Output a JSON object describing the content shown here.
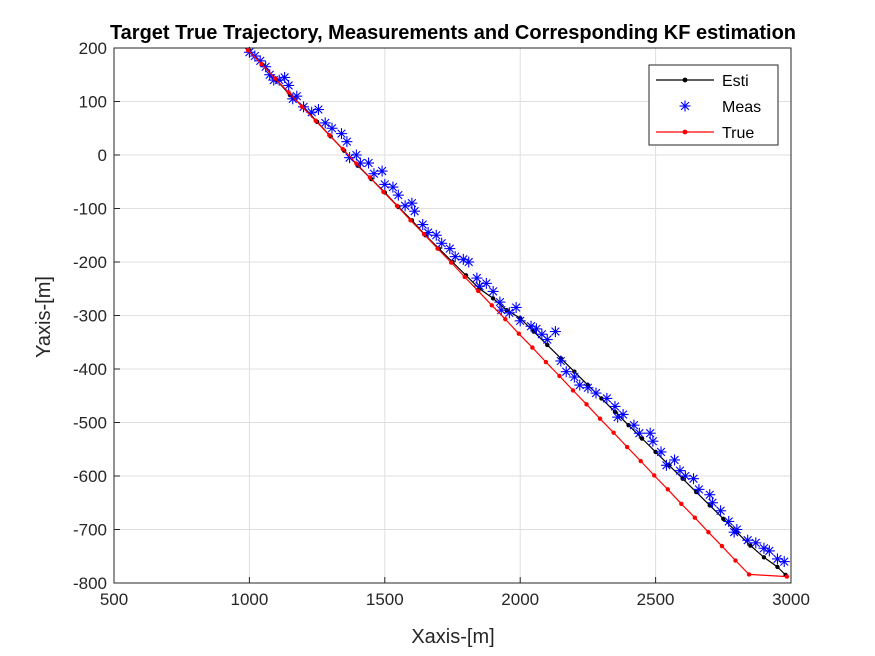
{
  "chart_data": {
    "type": "line",
    "title": "Target True Trajectory, Measurements and Corresponding KF estimation",
    "xlabel": "Xaxis-[m]",
    "ylabel": "Yaxis-[m]",
    "xlim": [
      500,
      3000
    ],
    "ylim": [
      -800,
      200
    ],
    "xticks": [
      500,
      1000,
      1500,
      2000,
      2500,
      3000
    ],
    "yticks": [
      200,
      100,
      0,
      -100,
      -200,
      -300,
      -400,
      -500,
      -600,
      -700,
      -800
    ],
    "grid": true,
    "legend_position": "top-right",
    "series": [
      {
        "name": "Esti",
        "color": "#000000",
        "marker": "dot",
        "points": [
          [
            1000,
            195
          ],
          [
            1050,
            168
          ],
          [
            1100,
            140
          ],
          [
            1150,
            112
          ],
          [
            1200,
            90
          ],
          [
            1250,
            62
          ],
          [
            1300,
            35
          ],
          [
            1350,
            8
          ],
          [
            1400,
            -20
          ],
          [
            1450,
            -45
          ],
          [
            1500,
            -70
          ],
          [
            1550,
            -97
          ],
          [
            1600,
            -122
          ],
          [
            1650,
            -150
          ],
          [
            1700,
            -175
          ],
          [
            1750,
            -200
          ],
          [
            1800,
            -225
          ],
          [
            1850,
            -250
          ],
          [
            1900,
            -268
          ],
          [
            1950,
            -290
          ],
          [
            2000,
            -305
          ],
          [
            2050,
            -330
          ],
          [
            2100,
            -355
          ],
          [
            2150,
            -380
          ],
          [
            2200,
            -405
          ],
          [
            2250,
            -430
          ],
          [
            2300,
            -455
          ],
          [
            2350,
            -480
          ],
          [
            2400,
            -505
          ],
          [
            2450,
            -530
          ],
          [
            2500,
            -555
          ],
          [
            2550,
            -580
          ],
          [
            2600,
            -605
          ],
          [
            2650,
            -630
          ],
          [
            2700,
            -655
          ],
          [
            2750,
            -680
          ],
          [
            2800,
            -705
          ],
          [
            2850,
            -730
          ],
          [
            2900,
            -752
          ],
          [
            2950,
            -770
          ],
          [
            2980,
            -785
          ]
        ]
      },
      {
        "name": "Meas",
        "color": "#0000ff",
        "marker": "asterisk",
        "points": [
          [
            1000,
            192
          ],
          [
            1020,
            185
          ],
          [
            1040,
            176
          ],
          [
            1060,
            165
          ],
          [
            1075,
            150
          ],
          [
            1090,
            140
          ],
          [
            1110,
            140
          ],
          [
            1130,
            145
          ],
          [
            1145,
            130
          ],
          [
            1160,
            105
          ],
          [
            1175,
            110
          ],
          [
            1200,
            90
          ],
          [
            1230,
            80
          ],
          [
            1255,
            85
          ],
          [
            1280,
            60
          ],
          [
            1305,
            50
          ],
          [
            1340,
            40
          ],
          [
            1360,
            25
          ],
          [
            1370,
            -5
          ],
          [
            1395,
            0
          ],
          [
            1410,
            -15
          ],
          [
            1440,
            -15
          ],
          [
            1460,
            -35
          ],
          [
            1490,
            -30
          ],
          [
            1500,
            -55
          ],
          [
            1530,
            -60
          ],
          [
            1550,
            -75
          ],
          [
            1575,
            -95
          ],
          [
            1600,
            -90
          ],
          [
            1610,
            -105
          ],
          [
            1640,
            -130
          ],
          [
            1660,
            -145
          ],
          [
            1690,
            -150
          ],
          [
            1710,
            -165
          ],
          [
            1740,
            -175
          ],
          [
            1760,
            -190
          ],
          [
            1790,
            -195
          ],
          [
            1810,
            -200
          ],
          [
            1840,
            -230
          ],
          [
            1850,
            -245
          ],
          [
            1875,
            -240
          ],
          [
            1900,
            -255
          ],
          [
            1925,
            -275
          ],
          [
            1930,
            -290
          ],
          [
            1960,
            -295
          ],
          [
            1985,
            -285
          ],
          [
            2000,
            -310
          ],
          [
            2040,
            -320
          ],
          [
            2060,
            -325
          ],
          [
            2080,
            -335
          ],
          [
            2100,
            -345
          ],
          [
            2130,
            -330
          ],
          [
            2150,
            -385
          ],
          [
            2170,
            -405
          ],
          [
            2200,
            -415
          ],
          [
            2220,
            -430
          ],
          [
            2250,
            -435
          ],
          [
            2280,
            -445
          ],
          [
            2320,
            -455
          ],
          [
            2350,
            -470
          ],
          [
            2360,
            -490
          ],
          [
            2380,
            -485
          ],
          [
            2420,
            -505
          ],
          [
            2440,
            -520
          ],
          [
            2480,
            -520
          ],
          [
            2490,
            -535
          ],
          [
            2520,
            -555
          ],
          [
            2540,
            -580
          ],
          [
            2570,
            -570
          ],
          [
            2590,
            -590
          ],
          [
            2610,
            -600
          ],
          [
            2640,
            -605
          ],
          [
            2660,
            -625
          ],
          [
            2700,
            -635
          ],
          [
            2710,
            -650
          ],
          [
            2740,
            -665
          ],
          [
            2770,
            -685
          ],
          [
            2790,
            -705
          ],
          [
            2800,
            -700
          ],
          [
            2840,
            -720
          ],
          [
            2870,
            -725
          ],
          [
            2900,
            -735
          ],
          [
            2920,
            -740
          ],
          [
            2950,
            -755
          ],
          [
            2975,
            -760
          ]
        ]
      },
      {
        "name": "True",
        "color": "#ff0000",
        "marker": "dot",
        "points": [
          [
            995,
            196
          ],
          [
            1045,
            170
          ],
          [
            1095,
            143
          ],
          [
            1145,
            117
          ],
          [
            1195,
            90
          ],
          [
            1245,
            64
          ],
          [
            1295,
            37
          ],
          [
            1345,
            11
          ],
          [
            1395,
            -16
          ],
          [
            1445,
            -42
          ],
          [
            1495,
            -69
          ],
          [
            1545,
            -95
          ],
          [
            1595,
            -122
          ],
          [
            1645,
            -148
          ],
          [
            1695,
            -175
          ],
          [
            1745,
            -201
          ],
          [
            1795,
            -228
          ],
          [
            1845,
            -254
          ],
          [
            1895,
            -281
          ],
          [
            1945,
            -307
          ],
          [
            1995,
            -334
          ],
          [
            2045,
            -360
          ],
          [
            2095,
            -387
          ],
          [
            2145,
            -413
          ],
          [
            2195,
            -440
          ],
          [
            2245,
            -466
          ],
          [
            2295,
            -493
          ],
          [
            2345,
            -519
          ],
          [
            2395,
            -546
          ],
          [
            2445,
            -572
          ],
          [
            2495,
            -599
          ],
          [
            2545,
            -625
          ],
          [
            2595,
            -652
          ],
          [
            2645,
            -678
          ],
          [
            2695,
            -705
          ],
          [
            2745,
            -731
          ],
          [
            2795,
            -758
          ],
          [
            2845,
            -784
          ],
          [
            2985,
            -788
          ]
        ]
      }
    ]
  }
}
